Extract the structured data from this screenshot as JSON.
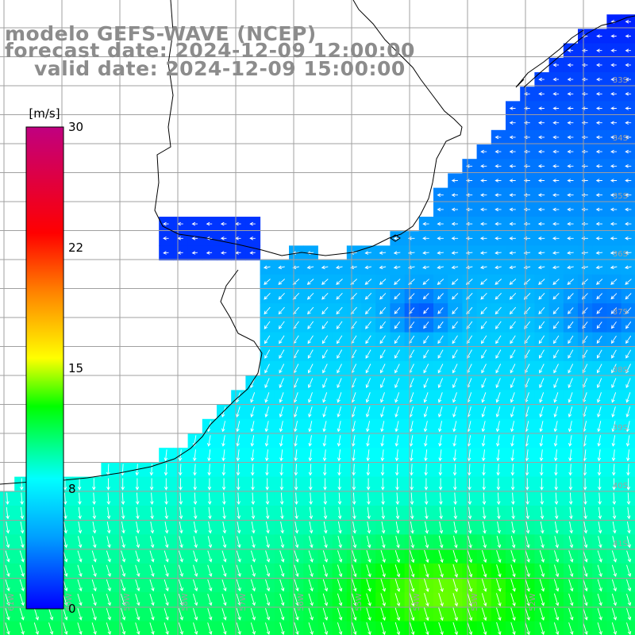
{
  "titles": {
    "model": "modelo GEFS-WAVE (NCEP)",
    "forecast": "forecast date: 2024-12-09 12:00:00",
    "valid": "valid date: 2024-12-09 15:00:00"
  },
  "legend": {
    "unit": "[m/s]",
    "ticks": [
      "30",
      "22",
      "15",
      "8",
      "0"
    ],
    "tick_values": [
      30,
      22,
      15,
      8,
      0
    ],
    "range": [
      0,
      30
    ],
    "colors": [
      "#0000ff",
      "#00a0ff",
      "#00ffff",
      "#00ff00",
      "#ffff00",
      "#ff8000",
      "#ff0000",
      "#c00080"
    ]
  },
  "lat_labels": [
    "33S",
    "34S",
    "35S",
    "36S",
    "37S",
    "38S",
    "39S",
    "40S",
    "41S"
  ],
  "lon_labels": [
    "61W",
    "60W",
    "59W",
    "58W",
    "57W",
    "56W",
    "55W",
    "54W",
    "53W",
    "52W"
  ],
  "colors": {
    "land": "#ffffff",
    "coastline": "#000000",
    "grid": "#a0a0a0",
    "arrow": "#ffffff",
    "title": "#8c8c8c"
  }
}
